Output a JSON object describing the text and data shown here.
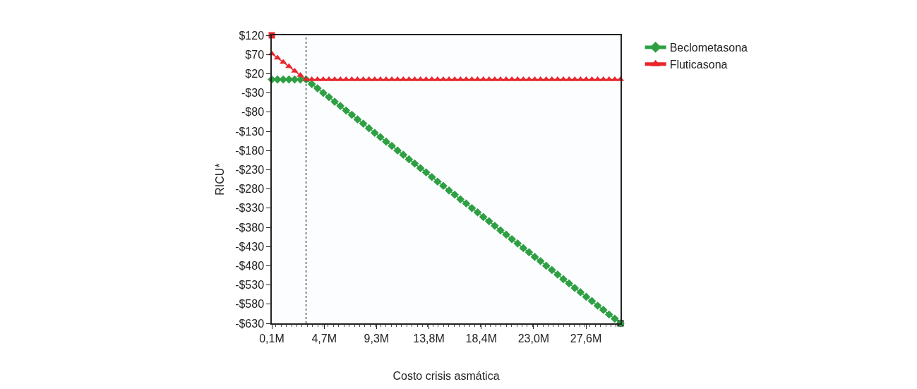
{
  "chart_data": {
    "type": "line",
    "xlabel": "Costo crisis asmática",
    "ylabel": "RICU*",
    "xlim": [
      0.1,
      30.6
    ],
    "xticks": [
      {
        "value": 0.1,
        "label": "0,1M"
      },
      {
        "value": 4.68,
        "label": "4,7M"
      },
      {
        "value": 9.26,
        "label": "9,3M"
      },
      {
        "value": 13.84,
        "label": "13,8M"
      },
      {
        "value": 18.42,
        "label": "18,4M"
      },
      {
        "value": 23.0,
        "label": "23,0M"
      },
      {
        "value": 27.58,
        "label": "27,6M"
      }
    ],
    "ylim": [
      -630,
      120
    ],
    "yticks": [
      {
        "value": 120,
        "label": "$120"
      },
      {
        "value": 70,
        "label": "$70"
      },
      {
        "value": 20,
        "label": "$20"
      },
      {
        "value": -30,
        "label": "-$30"
      },
      {
        "value": -80,
        "label": "-$80"
      },
      {
        "value": -130,
        "label": "-$130"
      },
      {
        "value": -180,
        "label": "-$180"
      },
      {
        "value": -230,
        "label": "-$230"
      },
      {
        "value": -280,
        "label": "-$280"
      },
      {
        "value": -330,
        "label": "-$330"
      },
      {
        "value": -380,
        "label": "-$380"
      },
      {
        "value": -430,
        "label": "-$430"
      },
      {
        "value": -480,
        "label": "-$480"
      },
      {
        "value": -530,
        "label": "-$530"
      },
      {
        "value": -580,
        "label": "-$580"
      },
      {
        "value": -630,
        "label": "-$630"
      }
    ],
    "grid": false,
    "legend": "top right",
    "x": [
      0.1,
      0.6,
      1.1,
      1.6,
      2.1,
      2.6,
      3.1,
      3.6,
      4.1,
      4.6,
      5.1,
      5.6,
      6.1,
      6.6,
      7.1,
      7.6,
      8.1,
      8.6,
      9.1,
      9.6,
      10.1,
      10.6,
      11.1,
      11.6,
      12.1,
      12.6,
      13.1,
      13.6,
      14.1,
      14.6,
      15.1,
      15.6,
      16.1,
      16.6,
      17.1,
      17.6,
      18.1,
      18.6,
      19.1,
      19.6,
      20.1,
      20.6,
      21.1,
      21.6,
      22.1,
      22.6,
      23.1,
      23.6,
      24.1,
      24.6,
      25.1,
      25.6,
      26.1,
      26.6,
      27.1,
      27.6,
      28.1,
      28.6,
      29.1,
      29.6,
      30.1,
      30.6
    ],
    "series": [
      {
        "name": "Beclometasona",
        "color": "#2ea043",
        "marker": "diamond",
        "values": [
          5,
          5,
          5,
          5,
          5,
          5,
          5,
          -7,
          -18,
          -30,
          -41,
          -53,
          -64,
          -76,
          -87,
          -99,
          -110,
          -122,
          -134,
          -145,
          -157,
          -168,
          -180,
          -191,
          -203,
          -214,
          -226,
          -237,
          -249,
          -261,
          -272,
          -284,
          -295,
          -307,
          -318,
          -330,
          -341,
          -353,
          -364,
          -376,
          -388,
          -399,
          -411,
          -422,
          -434,
          -445,
          -457,
          -468,
          -480,
          -491,
          -503,
          -515,
          -526,
          -538,
          -549,
          -561,
          -572,
          -584,
          -595,
          -607,
          -618,
          -630
        ]
      },
      {
        "name": "Fluticasona",
        "color": "#e8262b",
        "marker": "triangle",
        "values": [
          72,
          61,
          50,
          39,
          27,
          16,
          5,
          5,
          5,
          5,
          5,
          5,
          5,
          5,
          5,
          5,
          5,
          5,
          5,
          5,
          5,
          5,
          5,
          5,
          5,
          5,
          5,
          5,
          5,
          5,
          5,
          5,
          5,
          5,
          5,
          5,
          5,
          5,
          5,
          5,
          5,
          5,
          5,
          5,
          5,
          5,
          5,
          5,
          5,
          5,
          5,
          5,
          5,
          5,
          5,
          5,
          5,
          5,
          5,
          5,
          5,
          5
        ]
      },
      {
        "type": "scatter",
        "color": "#e8262b",
        "marker": "square",
        "x": [
          0.1
        ],
        "values": [
          120
        ]
      },
      {
        "type": "scatter",
        "color": "#000000",
        "marker": "square",
        "x": [
          30.6
        ],
        "values": [
          -630
        ]
      }
    ],
    "ref_lines": [
      {
        "axis": "x",
        "value": 3.1,
        "color": "#555555",
        "line_style": "dotted"
      }
    ]
  }
}
